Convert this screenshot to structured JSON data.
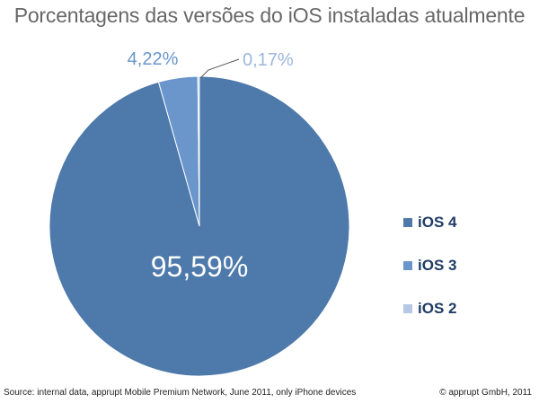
{
  "chart_data": {
    "type": "pie",
    "title": "Porcentagens das versões do iOS instaladas atualmente",
    "slices": [
      {
        "label": "iOS 4",
        "value": 95.59,
        "display": "95,59%",
        "color": "#4d79ab"
      },
      {
        "label": "iOS 3",
        "value": 4.22,
        "display": "4,22%",
        "color": "#6a96cb"
      },
      {
        "label": "iOS 2",
        "value": 0.17,
        "display": "0,17%",
        "color": "#b5c9e4"
      }
    ],
    "legend_position": "right"
  },
  "footer": {
    "source": "Source: internal data, apprupt Mobile Premium Network, June 2011, only iPhone devices",
    "copyright": "© apprupt GmbH, 2011"
  }
}
